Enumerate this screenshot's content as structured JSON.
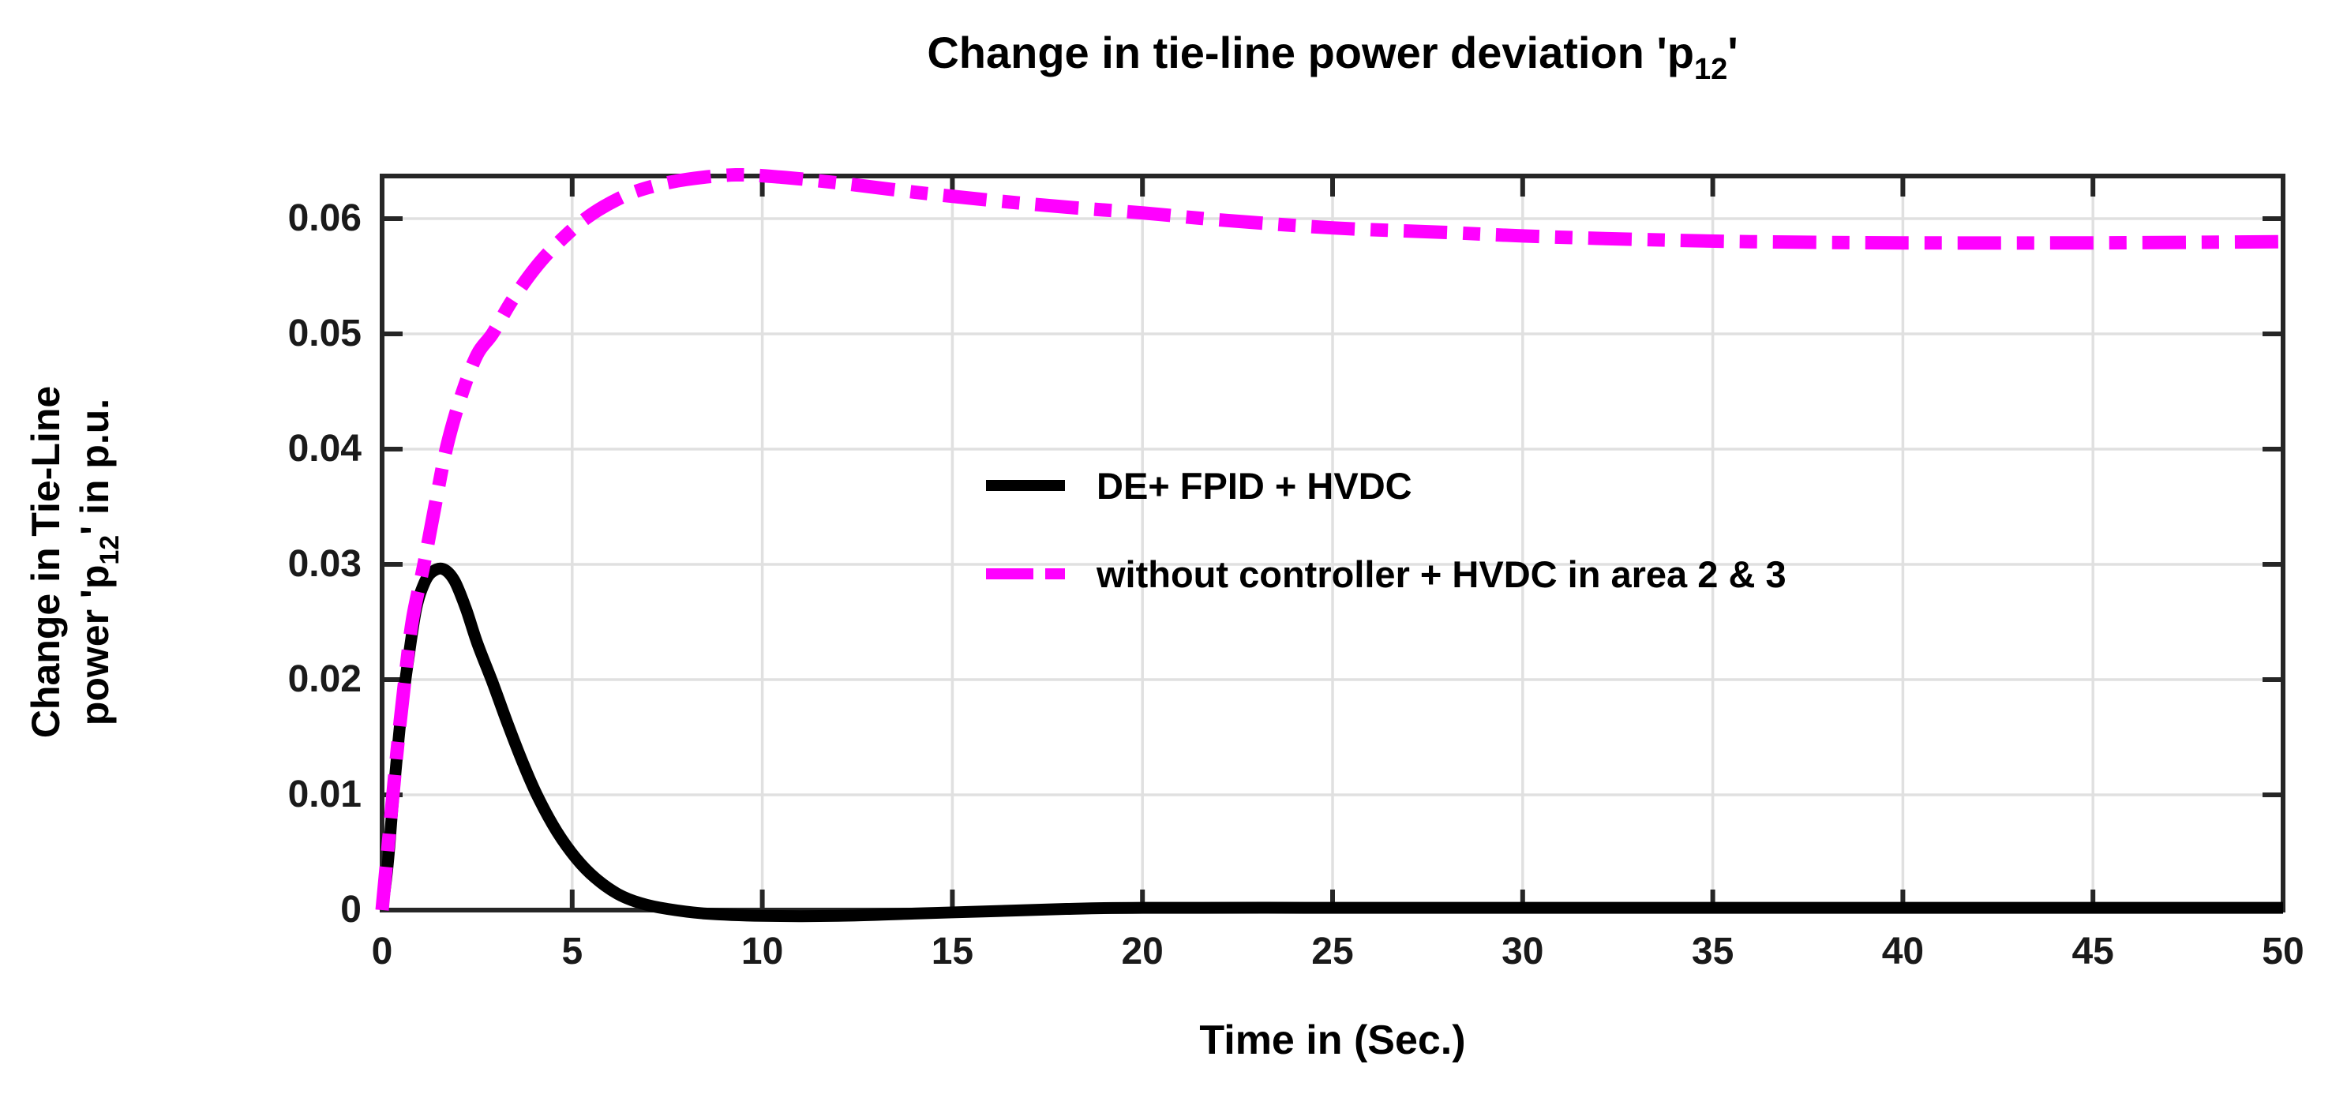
{
  "title": {
    "pre": "Change in tie-line power deviation 'p",
    "sub": "12",
    "post": "'"
  },
  "axes": {
    "xlabel": "Time in (Sec.)",
    "ylabel_line1": "Change in Tie-Line",
    "ylabel_line2_pre": "power 'p",
    "ylabel_line2_sub": "12",
    "ylabel_line2_post": "' in p.u."
  },
  "legend": {
    "items": [
      {
        "label": "DE+ FPID + HVDC",
        "color": "#000000",
        "style": "solid"
      },
      {
        "label": "without controller + HVDC in area 2 & 3",
        "color": "#ff00ff",
        "style": "dash-dot"
      }
    ]
  },
  "colors": {
    "series_black": "#000000",
    "series_magenta": "#ff00ff",
    "grid": "#e0e0e0",
    "spine": "#262626",
    "tick_label": "#1a1a1a",
    "background": "#ffffff"
  },
  "chart_data": {
    "type": "line",
    "title": "Change in tie-line power deviation 'p_12'",
    "xlabel": "Time in (Sec.)",
    "ylabel": "Change in Tie-Line power 'p_12' in p.u.",
    "xlim": [
      0,
      50
    ],
    "ylim": [
      0,
      0.0637
    ],
    "grid": true,
    "legend_position": "center-right of plot, no frame",
    "xticks": [
      0,
      5,
      10,
      15,
      20,
      25,
      30,
      35,
      40,
      45,
      50
    ],
    "xtick_labels": [
      "0",
      "5",
      "10",
      "15",
      "20",
      "25",
      "30",
      "35",
      "40",
      "45",
      "50"
    ],
    "yticks": [
      0,
      0.01,
      0.02,
      0.03,
      0.04,
      0.05,
      0.06
    ],
    "ytick_labels": [
      "0",
      "0.01",
      "0.02",
      "0.03",
      "0.04",
      "0.05",
      "0.06"
    ],
    "series": [
      {
        "name": "DE+ FPID + HVDC",
        "color": "#000000",
        "style": "solid",
        "stroke_width": 15,
        "points": [
          [
            0,
            0
          ],
          [
            0.15,
            0.004
          ],
          [
            0.3,
            0.01
          ],
          [
            0.5,
            0.017
          ],
          [
            0.7,
            0.022
          ],
          [
            0.9,
            0.0262
          ],
          [
            1.1,
            0.0283
          ],
          [
            1.3,
            0.0293
          ],
          [
            1.6,
            0.0296
          ],
          [
            1.9,
            0.0286
          ],
          [
            2.2,
            0.0262
          ],
          [
            2.5,
            0.0232
          ],
          [
            2.9,
            0.0198
          ],
          [
            3.3,
            0.0162
          ],
          [
            3.7,
            0.0128
          ],
          [
            4.1,
            0.0098
          ],
          [
            4.6,
            0.0068
          ],
          [
            5.1,
            0.0045
          ],
          [
            5.6,
            0.0028
          ],
          [
            6.2,
            0.0014
          ],
          [
            6.8,
            0.0006
          ],
          [
            7.5,
            0.0001
          ],
          [
            8.5,
            -0.0003
          ],
          [
            10,
            -0.0005
          ],
          [
            12,
            -0.0005
          ],
          [
            14,
            -0.0003
          ],
          [
            16,
            -0.0001
          ],
          [
            18,
            0.0001
          ],
          [
            20,
            0.0002
          ],
          [
            25,
            0.0002
          ],
          [
            30,
            0.0002
          ],
          [
            35,
            0.0002
          ],
          [
            40,
            0.0002
          ],
          [
            45,
            0.0002
          ],
          [
            50,
            0.0002
          ]
        ]
      },
      {
        "name": "without controller + HVDC in area 2 & 3",
        "color": "#ff00ff",
        "style": "dash-dot",
        "stroke_width": 17,
        "points": [
          [
            0,
            0
          ],
          [
            0.2,
            0.007
          ],
          [
            0.4,
            0.014
          ],
          [
            0.6,
            0.02
          ],
          [
            0.8,
            0.0252
          ],
          [
            1.1,
            0.03
          ],
          [
            1.4,
            0.0352
          ],
          [
            1.7,
            0.0402
          ],
          [
            2.1,
            0.0448
          ],
          [
            2.5,
            0.0482
          ],
          [
            2.9,
            0.05
          ],
          [
            3.4,
            0.0528
          ],
          [
            4.0,
            0.0556
          ],
          [
            4.6,
            0.0578
          ],
          [
            5.35,
            0.06
          ],
          [
            6.2,
            0.0617
          ],
          [
            7.0,
            0.0627
          ],
          [
            8.0,
            0.0634
          ],
          [
            9.3,
            0.0638
          ],
          [
            10.5,
            0.0636
          ],
          [
            12,
            0.0631
          ],
          [
            14,
            0.0623
          ],
          [
            16,
            0.0616
          ],
          [
            18,
            0.061
          ],
          [
            20,
            0.0605
          ],
          [
            22,
            0.0599
          ],
          [
            25,
            0.0592
          ],
          [
            28,
            0.0588
          ],
          [
            30,
            0.0585
          ],
          [
            33,
            0.0582
          ],
          [
            36,
            0.058
          ],
          [
            40,
            0.0579
          ],
          [
            45,
            0.0579
          ],
          [
            50,
            0.058
          ]
        ]
      }
    ]
  }
}
